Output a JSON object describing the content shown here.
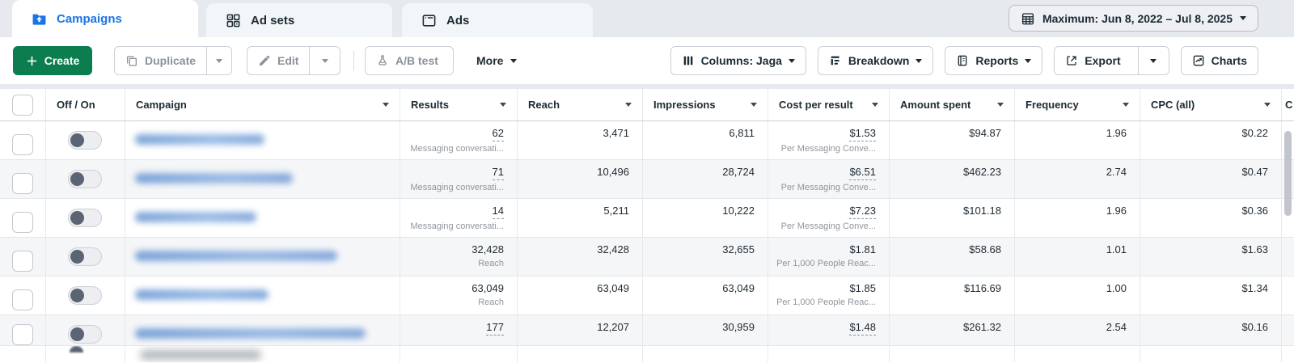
{
  "tabs": [
    {
      "label": "Campaigns",
      "active": true
    },
    {
      "label": "Ad sets",
      "active": false
    },
    {
      "label": "Ads",
      "active": false
    }
  ],
  "date_range": {
    "label": "Maximum: Jun 8, 2022 – Jul 8, 2025"
  },
  "toolbar": {
    "create": "Create",
    "duplicate": "Duplicate",
    "edit": "Edit",
    "ab_test": "A/B test",
    "more": "More",
    "columns": "Columns: Jaga",
    "breakdown": "Breakdown",
    "reports": "Reports",
    "export": "Export",
    "charts": "Charts"
  },
  "table": {
    "headers": {
      "off_on": "Off / On",
      "campaign": "Campaign",
      "results": "Results",
      "reach": "Reach",
      "impressions": "Impressions",
      "cost_per_result": "Cost per result",
      "amount_spent": "Amount spent",
      "frequency": "Frequency",
      "cpc": "CPC (all)",
      "next_partial": "C"
    },
    "rows": [
      {
        "results": "62",
        "results_note": "Messaging conversati...",
        "results_dotted": true,
        "reach": "3,471",
        "impressions": "6,811",
        "cost_per_result": "$1.53",
        "cpr_note": "Per Messaging Conve...",
        "cpr_dotted": true,
        "amount_spent": "$94.87",
        "frequency": "1.96",
        "cpc": "$0.22",
        "toggle_on": false,
        "shaded": false,
        "redacted_name_width": 160
      },
      {
        "results": "71",
        "results_note": "Messaging conversati...",
        "results_dotted": true,
        "reach": "10,496",
        "impressions": "28,724",
        "cost_per_result": "$6.51",
        "cpr_note": "Per Messaging Conve...",
        "cpr_dotted": true,
        "amount_spent": "$462.23",
        "frequency": "2.74",
        "cpc": "$0.47",
        "toggle_on": false,
        "shaded": true,
        "redacted_name_width": 195
      },
      {
        "results": "14",
        "results_note": "Messaging conversati...",
        "results_dotted": true,
        "reach": "5,211",
        "impressions": "10,222",
        "cost_per_result": "$7.23",
        "cpr_note": "Per Messaging Conve...",
        "cpr_dotted": true,
        "amount_spent": "$101.18",
        "frequency": "1.96",
        "cpc": "$0.36",
        "toggle_on": false,
        "shaded": false,
        "redacted_name_width": 150
      },
      {
        "results": "32,428",
        "results_note": "Reach",
        "results_dotted": false,
        "reach": "32,428",
        "impressions": "32,655",
        "cost_per_result": "$1.81",
        "cpr_note": "Per 1,000 People Reac...",
        "cpr_dotted": false,
        "amount_spent": "$58.68",
        "frequency": "1.01",
        "cpc": "$1.63",
        "toggle_on": false,
        "shaded": true,
        "redacted_name_width": 250
      },
      {
        "results": "63,049",
        "results_note": "Reach",
        "results_dotted": false,
        "reach": "63,049",
        "impressions": "63,049",
        "cost_per_result": "$1.85",
        "cpr_note": "Per 1,000 People Reac...",
        "cpr_dotted": false,
        "amount_spent": "$116.69",
        "frequency": "1.00",
        "cpc": "$1.34",
        "toggle_on": false,
        "shaded": false,
        "redacted_name_width": 165
      },
      {
        "results": "177",
        "results_note": "",
        "results_dotted": true,
        "reach": "12,207",
        "impressions": "30,959",
        "cost_per_result": "$1.48",
        "cpr_note": "",
        "cpr_dotted": true,
        "amount_spent": "$261.32",
        "frequency": "2.54",
        "cpc": "$0.16",
        "toggle_on": false,
        "shaded": true,
        "compact": true,
        "redacted_name_width": 285
      }
    ]
  }
}
